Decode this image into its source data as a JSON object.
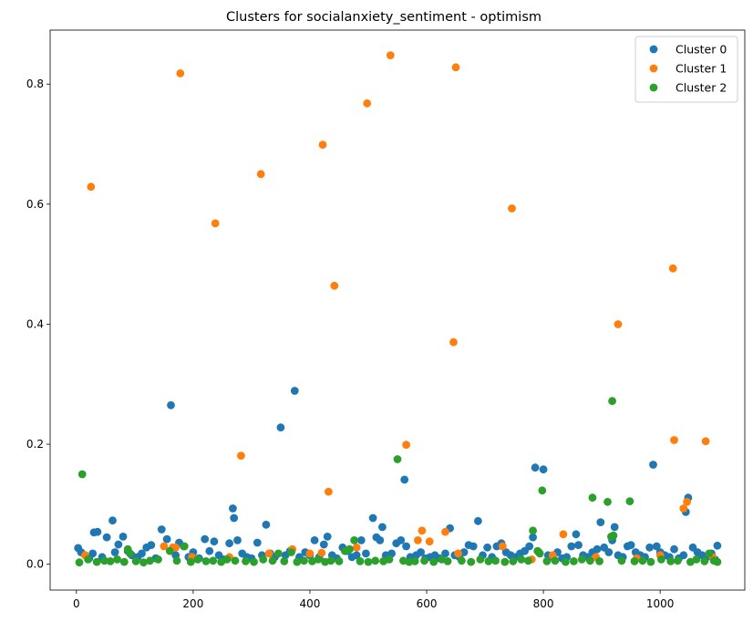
{
  "chart_data": {
    "type": "scatter",
    "title": "Clusters for socialanxiety_sentiment - optimism",
    "xlabel": "",
    "ylabel": "",
    "xlim": [
      -45,
      1145
    ],
    "ylim": [
      -0.043,
      0.89
    ],
    "xticks": [
      0,
      200,
      400,
      600,
      800,
      1000
    ],
    "yticks": [
      0.0,
      0.2,
      0.4,
      0.6,
      0.8
    ],
    "xtick_labels": [
      "0",
      "200",
      "400",
      "600",
      "800",
      "1000"
    ],
    "ytick_labels": [
      "0.0",
      "0.2",
      "0.4",
      "0.6",
      "0.8"
    ],
    "grid": false,
    "legend_position": "top-right",
    "series": [
      {
        "name": "Cluster 0",
        "color": "#1f77b4",
        "points": [
          [
            3,
            0.027
          ],
          [
            8,
            0.02
          ],
          [
            15,
            0.015
          ],
          [
            22,
            0.01
          ],
          [
            28,
            0.018
          ],
          [
            30,
            0.053
          ],
          [
            36,
            0.054
          ],
          [
            44,
            0.012
          ],
          [
            52,
            0.045
          ],
          [
            62,
            0.073
          ],
          [
            66,
            0.02
          ],
          [
            72,
            0.033
          ],
          [
            80,
            0.046
          ],
          [
            88,
            0.022
          ],
          [
            95,
            0.015
          ],
          [
            105,
            0.012
          ],
          [
            112,
            0.018
          ],
          [
            120,
            0.028
          ],
          [
            128,
            0.032
          ],
          [
            136,
            0.01
          ],
          [
            146,
            0.058
          ],
          [
            155,
            0.042
          ],
          [
            162,
            0.265
          ],
          [
            170,
            0.015
          ],
          [
            176,
            0.036
          ],
          [
            184,
            0.03
          ],
          [
            192,
            0.012
          ],
          [
            200,
            0.02
          ],
          [
            210,
            0.01
          ],
          [
            220,
            0.042
          ],
          [
            228,
            0.022
          ],
          [
            236,
            0.038
          ],
          [
            244,
            0.015
          ],
          [
            252,
            0.008
          ],
          [
            262,
            0.035
          ],
          [
            268,
            0.093
          ],
          [
            270,
            0.077
          ],
          [
            276,
            0.04
          ],
          [
            284,
            0.018
          ],
          [
            292,
            0.012
          ],
          [
            300,
            0.01
          ],
          [
            310,
            0.036
          ],
          [
            318,
            0.015
          ],
          [
            325,
            0.066
          ],
          [
            332,
            0.018
          ],
          [
            340,
            0.012
          ],
          [
            350,
            0.228
          ],
          [
            358,
            0.015
          ],
          [
            366,
            0.022
          ],
          [
            374,
            0.289
          ],
          [
            382,
            0.012
          ],
          [
            392,
            0.02
          ],
          [
            400,
            0.015
          ],
          [
            408,
            0.04
          ],
          [
            416,
            0.012
          ],
          [
            424,
            0.033
          ],
          [
            430,
            0.046
          ],
          [
            438,
            0.015
          ],
          [
            446,
            0.01
          ],
          [
            456,
            0.028
          ],
          [
            464,
            0.022
          ],
          [
            472,
            0.012
          ],
          [
            480,
            0.015
          ],
          [
            488,
            0.04
          ],
          [
            496,
            0.018
          ],
          [
            508,
            0.077
          ],
          [
            514,
            0.045
          ],
          [
            520,
            0.04
          ],
          [
            524,
            0.062
          ],
          [
            530,
            0.015
          ],
          [
            540,
            0.018
          ],
          [
            548,
            0.035
          ],
          [
            556,
            0.04
          ],
          [
            562,
            0.141
          ],
          [
            565,
            0.03
          ],
          [
            572,
            0.012
          ],
          [
            582,
            0.015
          ],
          [
            590,
            0.02
          ],
          [
            598,
            0.01
          ],
          [
            606,
            0.012
          ],
          [
            614,
            0.015
          ],
          [
            622,
            0.01
          ],
          [
            632,
            0.018
          ],
          [
            640,
            0.06
          ],
          [
            648,
            0.015
          ],
          [
            656,
            0.012
          ],
          [
            664,
            0.02
          ],
          [
            672,
            0.032
          ],
          [
            680,
            0.03
          ],
          [
            688,
            0.072
          ],
          [
            696,
            0.015
          ],
          [
            704,
            0.028
          ],
          [
            712,
            0.012
          ],
          [
            720,
            0.03
          ],
          [
            728,
            0.035
          ],
          [
            736,
            0.02
          ],
          [
            744,
            0.015
          ],
          [
            752,
            0.012
          ],
          [
            760,
            0.018
          ],
          [
            768,
            0.022
          ],
          [
            776,
            0.03
          ],
          [
            782,
            0.045
          ],
          [
            786,
            0.161
          ],
          [
            792,
            0.02
          ],
          [
            800,
            0.158
          ],
          [
            808,
            0.015
          ],
          [
            816,
            0.012
          ],
          [
            824,
            0.02
          ],
          [
            832,
            0.01
          ],
          [
            840,
            0.012
          ],
          [
            848,
            0.03
          ],
          [
            856,
            0.05
          ],
          [
            860,
            0.032
          ],
          [
            868,
            0.015
          ],
          [
            876,
            0.012
          ],
          [
            884,
            0.02
          ],
          [
            892,
            0.025
          ],
          [
            898,
            0.07
          ],
          [
            904,
            0.028
          ],
          [
            912,
            0.02
          ],
          [
            918,
            0.04
          ],
          [
            922,
            0.062
          ],
          [
            928,
            0.015
          ],
          [
            936,
            0.012
          ],
          [
            944,
            0.03
          ],
          [
            950,
            0.032
          ],
          [
            958,
            0.02
          ],
          [
            966,
            0.015
          ],
          [
            974,
            0.012
          ],
          [
            982,
            0.028
          ],
          [
            988,
            0.166
          ],
          [
            994,
            0.03
          ],
          [
            1000,
            0.02
          ],
          [
            1008,
            0.015
          ],
          [
            1016,
            0.012
          ],
          [
            1024,
            0.025
          ],
          [
            1032,
            0.01
          ],
          [
            1040,
            0.015
          ],
          [
            1044,
            0.087
          ],
          [
            1048,
            0.111
          ],
          [
            1056,
            0.028
          ],
          [
            1064,
            0.02
          ],
          [
            1072,
            0.015
          ],
          [
            1080,
            0.012
          ],
          [
            1088,
            0.018
          ],
          [
            1094,
            0.008
          ],
          [
            1098,
            0.031
          ]
        ]
      },
      {
        "name": "Cluster 1",
        "color": "#ff7f0e",
        "points": [
          [
            15,
            0.015
          ],
          [
            25,
            0.629
          ],
          [
            150,
            0.03
          ],
          [
            165,
            0.028
          ],
          [
            170,
            0.028
          ],
          [
            178,
            0.818
          ],
          [
            198,
            0.012
          ],
          [
            238,
            0.568
          ],
          [
            262,
            0.012
          ],
          [
            282,
            0.181
          ],
          [
            316,
            0.65
          ],
          [
            330,
            0.018
          ],
          [
            370,
            0.025
          ],
          [
            400,
            0.018
          ],
          [
            420,
            0.019
          ],
          [
            422,
            0.699
          ],
          [
            432,
            0.121
          ],
          [
            442,
            0.464
          ],
          [
            480,
            0.028
          ],
          [
            498,
            0.768
          ],
          [
            538,
            0.848
          ],
          [
            585,
            0.04
          ],
          [
            592,
            0.056
          ],
          [
            605,
            0.038
          ],
          [
            632,
            0.054
          ],
          [
            646,
            0.37
          ],
          [
            650,
            0.828
          ],
          [
            654,
            0.018
          ],
          [
            565,
            0.199
          ],
          [
            730,
            0.03
          ],
          [
            746,
            0.593
          ],
          [
            780,
            0.008
          ],
          [
            816,
            0.015
          ],
          [
            834,
            0.05
          ],
          [
            890,
            0.012
          ],
          [
            928,
            0.4
          ],
          [
            960,
            0.01
          ],
          [
            1000,
            0.015
          ],
          [
            1022,
            0.493
          ],
          [
            1024,
            0.207
          ],
          [
            1040,
            0.093
          ],
          [
            1046,
            0.104
          ],
          [
            1078,
            0.205
          ],
          [
            1090,
            0.012
          ]
        ]
      },
      {
        "name": "Cluster 2",
        "color": "#2ca02c",
        "points": [
          [
            5,
            0.003
          ],
          [
            10,
            0.15
          ],
          [
            20,
            0.008
          ],
          [
            35,
            0.004
          ],
          [
            48,
            0.006
          ],
          [
            58,
            0.005
          ],
          [
            70,
            0.008
          ],
          [
            82,
            0.004
          ],
          [
            88,
            0.025
          ],
          [
            92,
            0.018
          ],
          [
            102,
            0.005
          ],
          [
            115,
            0.003
          ],
          [
            126,
            0.006
          ],
          [
            140,
            0.008
          ],
          [
            160,
            0.022
          ],
          [
            172,
            0.006
          ],
          [
            185,
            0.03
          ],
          [
            196,
            0.004
          ],
          [
            208,
            0.008
          ],
          [
            222,
            0.005
          ],
          [
            234,
            0.006
          ],
          [
            248,
            0.004
          ],
          [
            258,
            0.008
          ],
          [
            272,
            0.006
          ],
          [
            290,
            0.005
          ],
          [
            304,
            0.004
          ],
          [
            320,
            0.008
          ],
          [
            336,
            0.006
          ],
          [
            346,
            0.018
          ],
          [
            356,
            0.005
          ],
          [
            368,
            0.02
          ],
          [
            378,
            0.004
          ],
          [
            390,
            0.006
          ],
          [
            404,
            0.005
          ],
          [
            414,
            0.008
          ],
          [
            426,
            0.004
          ],
          [
            436,
            0.006
          ],
          [
            450,
            0.005
          ],
          [
            460,
            0.022
          ],
          [
            468,
            0.025
          ],
          [
            476,
            0.04
          ],
          [
            486,
            0.005
          ],
          [
            500,
            0.004
          ],
          [
            512,
            0.006
          ],
          [
            526,
            0.005
          ],
          [
            536,
            0.008
          ],
          [
            550,
            0.175
          ],
          [
            560,
            0.006
          ],
          [
            570,
            0.004
          ],
          [
            580,
            0.005
          ],
          [
            596,
            0.006
          ],
          [
            612,
            0.004
          ],
          [
            626,
            0.008
          ],
          [
            636,
            0.005
          ],
          [
            660,
            0.006
          ],
          [
            676,
            0.004
          ],
          [
            692,
            0.008
          ],
          [
            706,
            0.005
          ],
          [
            718,
            0.006
          ],
          [
            734,
            0.004
          ],
          [
            748,
            0.005
          ],
          [
            762,
            0.008
          ],
          [
            774,
            0.006
          ],
          [
            782,
            0.056
          ],
          [
            790,
            0.022
          ],
          [
            794,
            0.018
          ],
          [
            798,
            0.123
          ],
          [
            806,
            0.005
          ],
          [
            820,
            0.006
          ],
          [
            838,
            0.004
          ],
          [
            852,
            0.005
          ],
          [
            866,
            0.008
          ],
          [
            880,
            0.006
          ],
          [
            884,
            0.111
          ],
          [
            896,
            0.005
          ],
          [
            910,
            0.104
          ],
          [
            916,
            0.046
          ],
          [
            918,
            0.272
          ],
          [
            920,
            0.048
          ],
          [
            934,
            0.006
          ],
          [
            948,
            0.105
          ],
          [
            956,
            0.005
          ],
          [
            970,
            0.006
          ],
          [
            984,
            0.004
          ],
          [
            1002,
            0.008
          ],
          [
            1018,
            0.005
          ],
          [
            1030,
            0.006
          ],
          [
            1052,
            0.004
          ],
          [
            1062,
            0.008
          ],
          [
            1076,
            0.005
          ],
          [
            1084,
            0.018
          ],
          [
            1092,
            0.006
          ],
          [
            1098,
            0.004
          ]
        ]
      }
    ]
  }
}
